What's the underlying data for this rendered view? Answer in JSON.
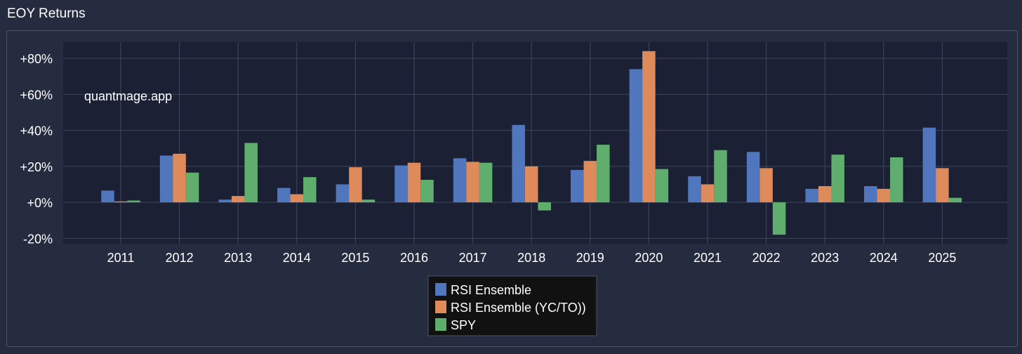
{
  "page": {
    "title": "EOY Returns"
  },
  "colors": {
    "background": "#252c40",
    "plot_bg": "#1b2035",
    "grid": "#3b4257",
    "legend_bg": "#111111",
    "series": [
      "#5077bd",
      "#de8a5a",
      "#5fae6d"
    ]
  },
  "chart_data": {
    "type": "bar",
    "title": "EOY Returns",
    "watermark": "quantmage.app",
    "categories": [
      "2011",
      "2012",
      "2013",
      "2014",
      "2015",
      "2016",
      "2017",
      "2018",
      "2019",
      "2020",
      "2021",
      "2022",
      "2023",
      "2024",
      "2025"
    ],
    "series": [
      {
        "name": "RSI Ensemble",
        "values": [
          6.5,
          26,
          1.5,
          8,
          10,
          20.5,
          24.5,
          43,
          18,
          74,
          14.5,
          28,
          7.5,
          9,
          41.5
        ]
      },
      {
        "name": "RSI Ensemble (YC/TO))",
        "values": [
          0.5,
          27,
          3.5,
          4.5,
          19.5,
          22,
          22.5,
          20,
          23,
          84,
          10,
          19,
          9,
          7.5,
          19
        ]
      },
      {
        "name": "SPY",
        "values": [
          1,
          16.5,
          33,
          14,
          1.5,
          12.5,
          22,
          -4.5,
          32,
          18.5,
          29,
          -18,
          26.5,
          25,
          2.5
        ]
      }
    ],
    "ylim": [
      -23,
      89
    ],
    "yticks": [
      -20,
      0,
      20,
      40,
      60,
      80
    ],
    "ytick_labels": [
      "-20%",
      "+0%",
      "+20%",
      "+40%",
      "+60%",
      "+80%"
    ],
    "grid": true,
    "legend_placement": "bottom-center"
  }
}
